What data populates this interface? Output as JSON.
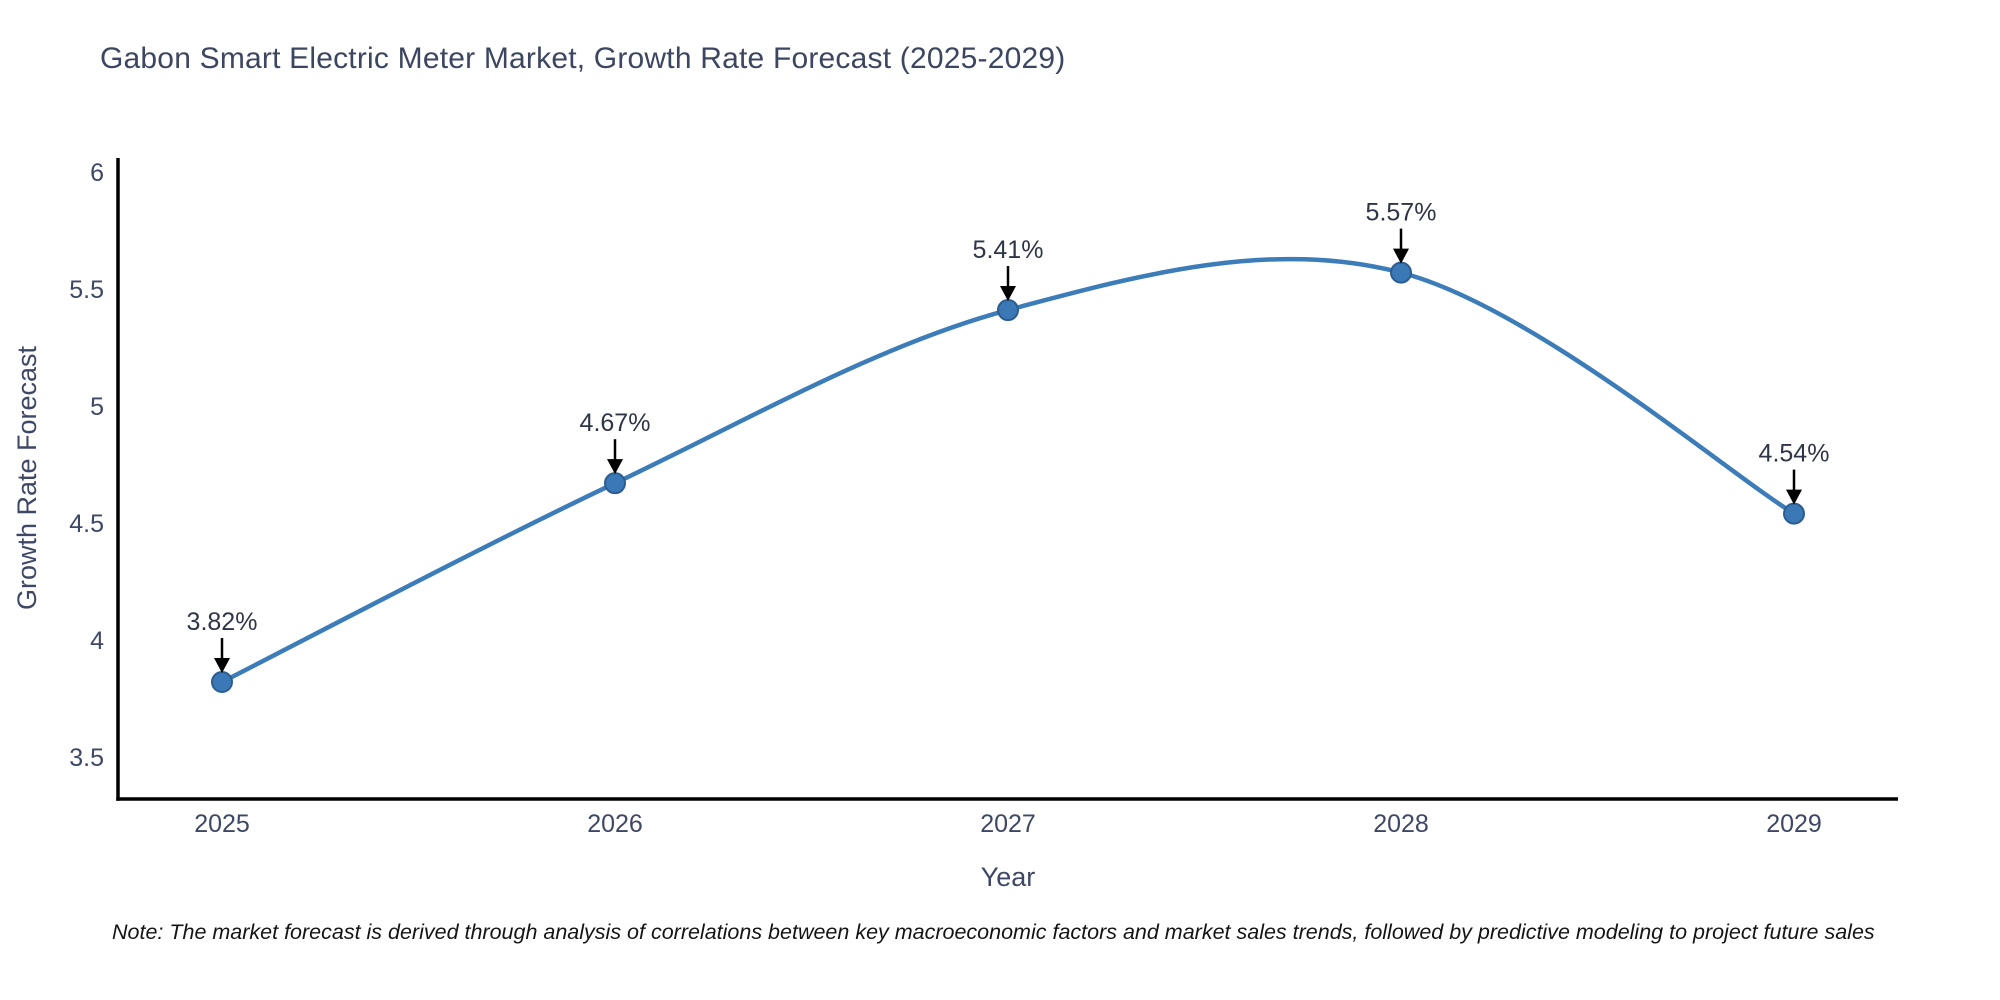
{
  "note": {
    "text": "Note: The market forecast is derived through analysis of correlations between key macroeconomic factors and market sales trends, followed by predictive modeling to project future sales"
  },
  "chart_data": {
    "type": "line",
    "line_shape": "spline",
    "title": "Gabon Smart Electric Meter Market, Growth Rate Forecast (2025-2029)",
    "xlabel": "Year",
    "ylabel": "Growth Rate Forecast",
    "categories": [
      "2025",
      "2026",
      "2027",
      "2028",
      "2029"
    ],
    "values": [
      3.82,
      4.67,
      5.41,
      5.57,
      4.54
    ],
    "point_labels": [
      "3.82%",
      "4.67%",
      "5.41%",
      "5.57%",
      "4.54%"
    ],
    "y_ticks": [
      3.5,
      4,
      4.5,
      5,
      5.5,
      6
    ],
    "ylim": [
      3.32,
      6.06
    ],
    "grid": false,
    "legend": false,
    "colors": {
      "line": "#3c7cb8",
      "marker": "#3a78b6",
      "marker_edge": "#2c5d91",
      "axis_line": "#000000",
      "axis_text": "#3f4766",
      "annotation_text": "#2e3547",
      "annotation_arrow": "#000000"
    }
  }
}
